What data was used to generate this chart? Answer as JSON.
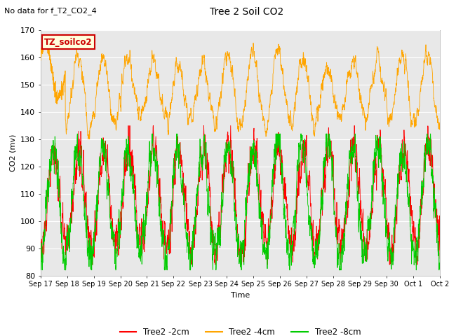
{
  "title": "Tree 2 Soil CO2",
  "subtitle": "No data for f_T2_CO2_4",
  "ylabel": "CO2 (mv)",
  "xlabel": "Time",
  "ylim": [
    80,
    170
  ],
  "legend_labels": [
    "Tree2 -2cm",
    "Tree2 -4cm",
    "Tree2 -8cm"
  ],
  "legend_colors": [
    "#ff0000",
    "#ffa500",
    "#00cc00"
  ],
  "annotation_box": "TZ_soilco2",
  "annotation_color": "#cc0000",
  "annotation_bg": "#ffffdd",
  "xtick_labels": [
    "Sep 17",
    "Sep 18",
    "Sep 19",
    "Sep 20",
    "Sep 21",
    "Sep 22",
    "Sep 23",
    "Sep 24",
    "Sep 25",
    "Sep 26",
    "Sep 27",
    "Sep 28",
    "Sep 29",
    "Sep 30",
    "Oct 1",
    "Oct 2"
  ],
  "background_color": "#ffffff",
  "plot_bg_color": "#e8e8e8",
  "grid_color": "#ffffff",
  "n_points": 2400
}
